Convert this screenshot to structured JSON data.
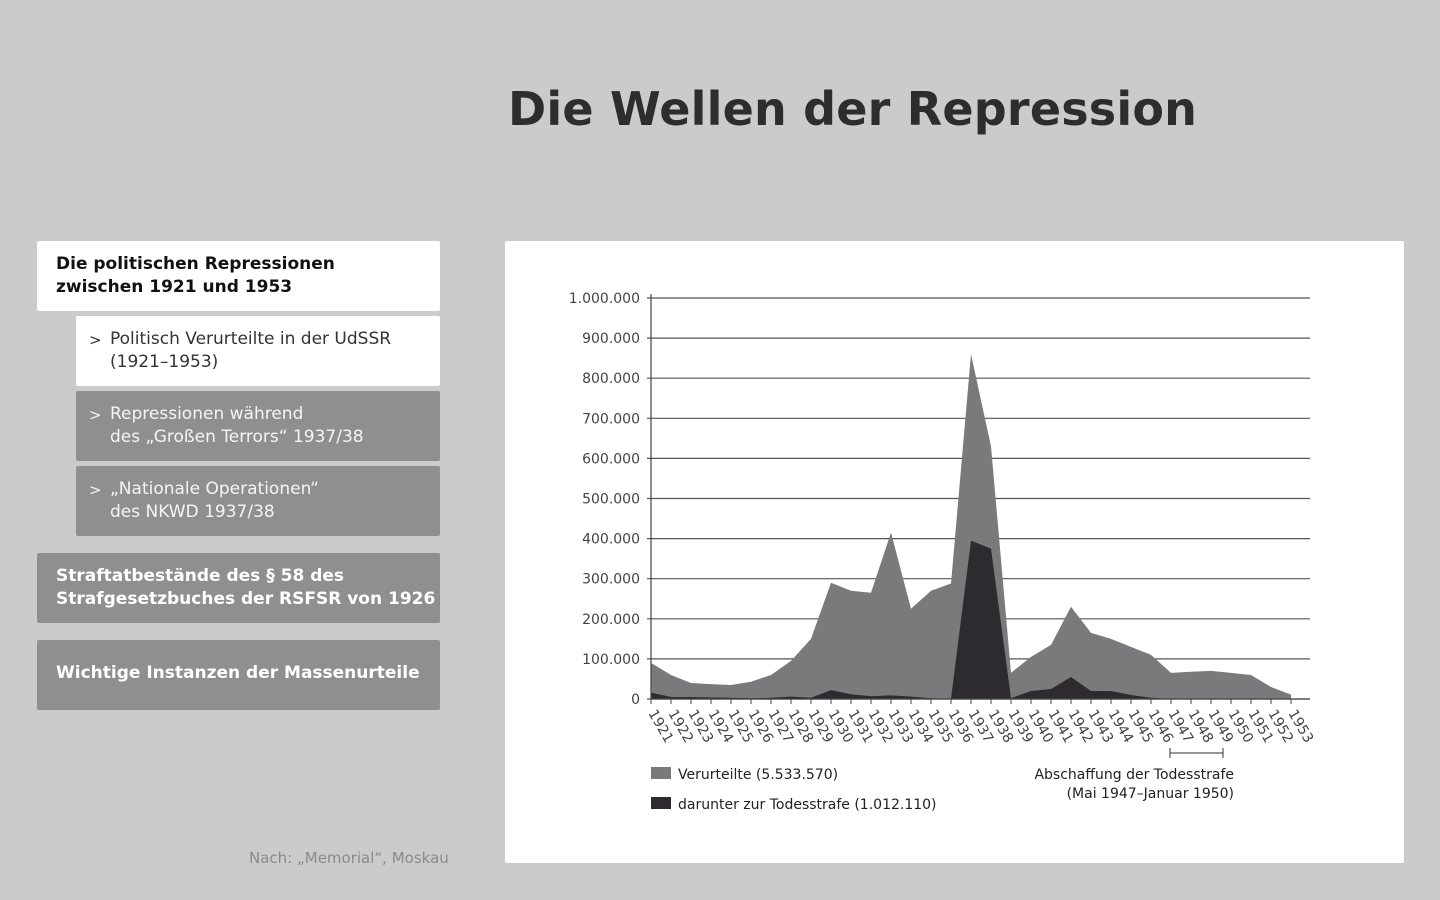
{
  "title": "Die Wellen der Repression",
  "nav": {
    "main1": {
      "line1": "Die politischen Repressionen",
      "line2": "zwischen 1921 und 1953"
    },
    "sub1": {
      "arrow": ">",
      "line1": "Politisch Verurteilte in der UdSSR",
      "line2": "(1921–1953)"
    },
    "sub2": {
      "arrow": ">",
      "line1": "Repressionen während",
      "line2": "des „Großen Terrors“ 1937/38"
    },
    "sub3": {
      "arrow": ">",
      "line1": "„Nationale Operationen“",
      "line2": "des NKWD 1937/38"
    },
    "main2": {
      "line1": "Straftatbestände des § 58 des",
      "line2": "Strafgesetzbuches der RSFSR von 1926"
    },
    "main3": {
      "line1": "Wichtige Instanzen der Massenurteile"
    }
  },
  "source": "Nach: „Memorial“, Moskau",
  "chart_data": {
    "type": "area",
    "title": "",
    "xlabel": "",
    "ylabel": "",
    "ylim": [
      0,
      1000000
    ],
    "grid": true,
    "legend_position": "bottom-left",
    "x": [
      1921,
      1922,
      1923,
      1924,
      1925,
      1926,
      1927,
      1928,
      1929,
      1930,
      1931,
      1932,
      1933,
      1934,
      1935,
      1936,
      1937,
      1938,
      1939,
      1940,
      1941,
      1942,
      1943,
      1944,
      1945,
      1946,
      1947,
      1948,
      1949,
      1950,
      1951,
      1952,
      1953
    ],
    "yticks": [
      0,
      100000,
      200000,
      300000,
      400000,
      500000,
      600000,
      700000,
      800000,
      900000,
      1000000
    ],
    "ytick_labels": [
      "0",
      "100.000",
      "200.000",
      "300.000",
      "400.000",
      "500.000",
      "600.000",
      "700.000",
      "800.000",
      "900.000",
      "1.000.000"
    ],
    "series": [
      {
        "name": "Verurteilte (5.533.570)",
        "color": "#7a797b",
        "values": [
          90000,
          60000,
          40000,
          37000,
          35000,
          43000,
          60000,
          95000,
          150000,
          290000,
          270000,
          265000,
          415000,
          225000,
          270000,
          288000,
          860000,
          630000,
          65000,
          105000,
          135000,
          230000,
          165000,
          150000,
          130000,
          110000,
          65000,
          68000,
          70000,
          65000,
          60000,
          30000,
          11000
        ]
      },
      {
        "name": "darunter zur Todesstrafe (1.012.110)",
        "color": "#2d2b2f",
        "values": [
          16000,
          5000,
          5000,
          4000,
          3000,
          2000,
          3000,
          6000,
          3000,
          22000,
          12000,
          7000,
          9000,
          6000,
          2000,
          1000,
          395000,
          375000,
          2000,
          20000,
          25000,
          55000,
          20000,
          20000,
          10000,
          3000,
          0,
          0,
          0,
          0,
          0,
          0,
          0
        ]
      }
    ],
    "annotation": {
      "line1": "Abschaffung der Todesstrafe",
      "line2": "(Mai 1947–Januar 1950)",
      "range": [
        1947,
        1950
      ]
    }
  },
  "colors": {
    "background": "#cbcbcb",
    "nav_active": "#ffffff",
    "nav_inactive": "#8f8f8f",
    "grid": "#555555"
  }
}
